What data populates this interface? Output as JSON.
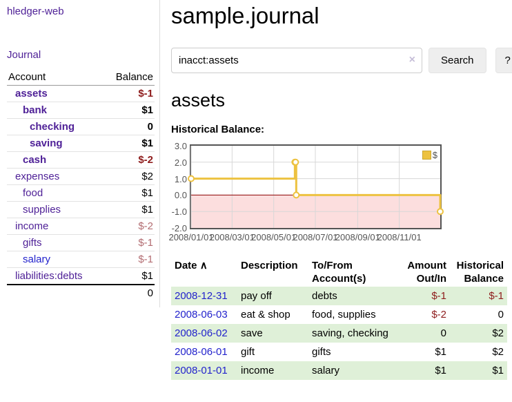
{
  "app": {
    "brand": "hledger-web",
    "nav_journal": "Journal"
  },
  "sidebar": {
    "account_header": "Account",
    "balance_header": "Balance",
    "accounts": [
      {
        "name": "assets",
        "indent": 1,
        "bold": true,
        "balance": "$-1",
        "negative": true,
        "muted": false,
        "blue": false
      },
      {
        "name": "bank",
        "indent": 2,
        "bold": true,
        "balance": "$1",
        "negative": false,
        "muted": false,
        "blue": false
      },
      {
        "name": "checking",
        "indent": 3,
        "bold": true,
        "balance": "0",
        "negative": false,
        "muted": false,
        "blue": false
      },
      {
        "name": "saving",
        "indent": 3,
        "bold": true,
        "balance": "$1",
        "negative": false,
        "muted": false,
        "blue": false
      },
      {
        "name": "cash",
        "indent": 2,
        "bold": true,
        "balance": "$-2",
        "negative": true,
        "muted": false,
        "blue": false
      },
      {
        "name": "expenses",
        "indent": 1,
        "bold": false,
        "balance": "$2",
        "negative": false,
        "muted": false,
        "blue": false
      },
      {
        "name": "food",
        "indent": 2,
        "bold": false,
        "balance": "$1",
        "negative": false,
        "muted": false,
        "blue": false
      },
      {
        "name": "supplies",
        "indent": 2,
        "bold": false,
        "balance": "$1",
        "negative": false,
        "muted": false,
        "blue": false
      },
      {
        "name": "income",
        "indent": 1,
        "bold": false,
        "balance": "$-2",
        "negative": true,
        "muted": true,
        "blue": false
      },
      {
        "name": "gifts",
        "indent": 2,
        "bold": false,
        "balance": "$-1",
        "negative": true,
        "muted": true,
        "blue": false
      },
      {
        "name": "salary",
        "indent": 2,
        "bold": false,
        "balance": "$-1",
        "negative": true,
        "muted": true,
        "blue": true
      },
      {
        "name": "liabilities:debts",
        "indent": 1,
        "bold": false,
        "balance": "$1",
        "negative": false,
        "muted": false,
        "blue": false
      }
    ],
    "total": "0"
  },
  "main": {
    "title": "sample.journal",
    "search": {
      "value": "inacct:assets",
      "clear_icon": "×",
      "button": "Search",
      "help_button": "?"
    },
    "account_heading": "assets",
    "chart_heading": "Historical Balance:"
  },
  "chart_data": {
    "type": "line",
    "title": "Historical Balance",
    "step": true,
    "series": [
      {
        "name": "$",
        "color": "#edc240",
        "points": [
          {
            "date": "2008-01-01",
            "day": 0,
            "value": 1
          },
          {
            "date": "2008-06-01",
            "day": 152,
            "value": 2
          },
          {
            "date": "2008-06-02",
            "day": 153,
            "value": 2
          },
          {
            "date": "2008-06-03",
            "day": 154,
            "value": 0
          },
          {
            "date": "2008-12-31",
            "day": 365,
            "value": -1
          }
        ]
      }
    ],
    "ylim": [
      -2,
      3
    ],
    "yticks": [
      {
        "label": "3.0",
        "value": 3
      },
      {
        "label": "2.0",
        "value": 2
      },
      {
        "label": "1.0",
        "value": 1
      },
      {
        "label": "0.0",
        "value": 0
      },
      {
        "label": "-1.0",
        "value": -1
      },
      {
        "label": "-2.0",
        "value": -2
      }
    ],
    "xticks": [
      {
        "label": "2008/01/01",
        "day": 0
      },
      {
        "label": "2008/03/01",
        "day": 60
      },
      {
        "label": "2008/05/01",
        "day": 121
      },
      {
        "label": "2008/07/01",
        "day": 182
      },
      {
        "label": "2008/09/01",
        "day": 244
      },
      {
        "label": "2008/11/01",
        "day": 305
      }
    ],
    "xrange_days": [
      0,
      365
    ],
    "legend_label": "$",
    "legend_position": "top-right",
    "grid": true,
    "grid_color": "#d7d7d7",
    "border_color": "#545454",
    "negative_region_color": "#fcdede",
    "zero_line_color": "#8b0000",
    "marker_fill": "#ffffff"
  },
  "register": {
    "headers": {
      "date": "Date",
      "date_sort_icon": "∧",
      "description": "Description",
      "accounts": "To/From Account(s)",
      "amount": "Amount Out/In",
      "balance": "Historical Balance"
    },
    "rows": [
      {
        "date": "2008-12-31",
        "description": "pay off",
        "accounts": "debts",
        "amount": "$-1",
        "amount_negative": true,
        "balance": "$-1",
        "balance_negative": true
      },
      {
        "date": "2008-06-03",
        "description": "eat & shop",
        "accounts": "food, supplies",
        "amount": "$-2",
        "amount_negative": true,
        "balance": "0",
        "balance_negative": false
      },
      {
        "date": "2008-06-02",
        "description": "save",
        "accounts": "saving, checking",
        "amount": "0",
        "amount_negative": false,
        "balance": "$2",
        "balance_negative": false
      },
      {
        "date": "2008-06-01",
        "description": "gift",
        "accounts": "gifts",
        "amount": "$1",
        "amount_negative": false,
        "balance": "$2",
        "balance_negative": false
      },
      {
        "date": "2008-01-01",
        "description": "income",
        "accounts": "salary",
        "amount": "$1",
        "amount_negative": false,
        "balance": "$1",
        "balance_negative": false
      }
    ]
  }
}
